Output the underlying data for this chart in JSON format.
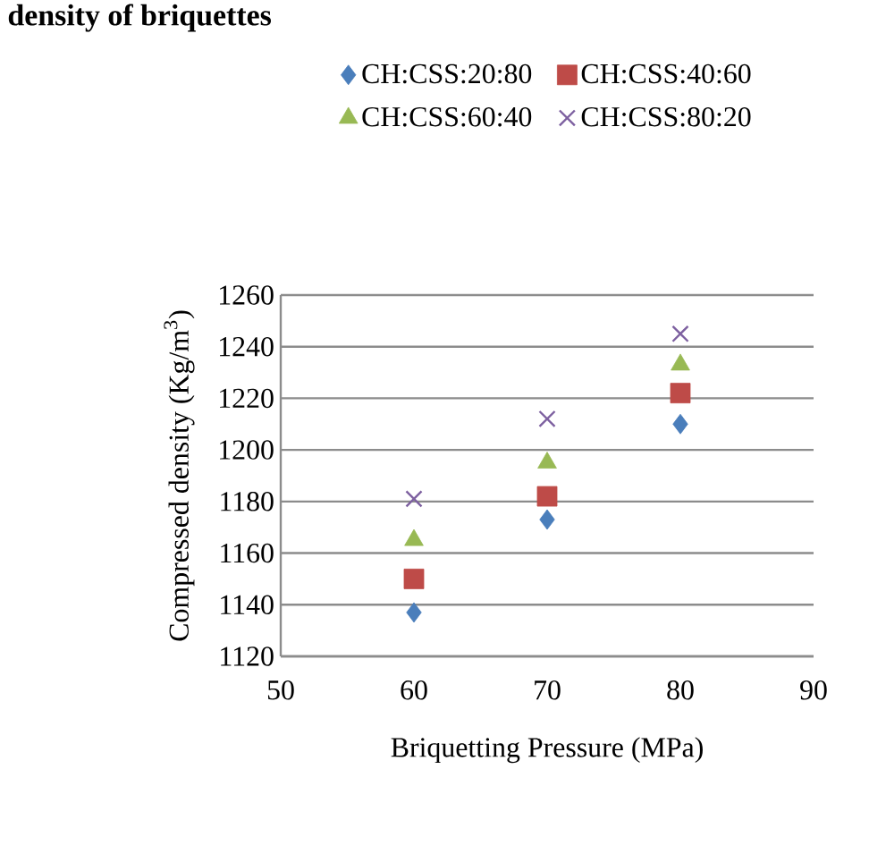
{
  "chart_data": {
    "type": "scatter",
    "title": "density of briquettes",
    "xlabel": "Briquetting Pressure (MPa)",
    "ylabel": "Compressed density (Kg/m$^{3}$)",
    "x": [
      60,
      70,
      80
    ],
    "series": [
      {
        "name": "CH:CSS:20:80",
        "color": "#4a7ebb",
        "marker": "diamond",
        "values": [
          1137,
          1173,
          1210
        ]
      },
      {
        "name": "CH:CSS:40:60",
        "color": "#be4b48",
        "marker": "square",
        "values": [
          1150,
          1182,
          1222
        ]
      },
      {
        "name": "CH:CSS:60:40",
        "color": "#98b954",
        "marker": "triangle",
        "values": [
          1165,
          1195,
          1233
        ]
      },
      {
        "name": "CH:CSS:80:20",
        "color": "#7d60a0",
        "marker": "cross",
        "values": [
          1181,
          1212,
          1245
        ]
      }
    ],
    "xlim": [
      50,
      90
    ],
    "xticks": [
      50,
      60,
      70,
      80,
      90
    ],
    "ylim": [
      1120,
      1260
    ],
    "yticks": [
      1120,
      1140,
      1160,
      1180,
      1200,
      1220,
      1240,
      1260
    ],
    "grid": "y",
    "legend": "top"
  }
}
